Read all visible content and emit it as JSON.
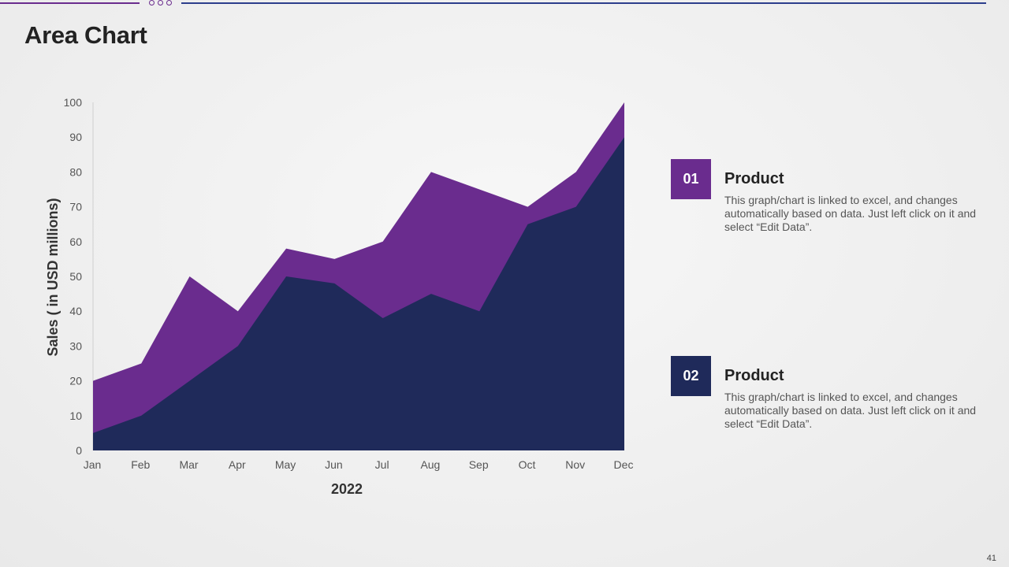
{
  "slide": {
    "title": "Area Chart",
    "page_number": "41"
  },
  "colors": {
    "accent_purple": "#6a2c8e",
    "accent_navy": "#1f2a5a",
    "top_line_blue": "#2c3e8c"
  },
  "legend_cards": [
    {
      "number": "01",
      "heading": "Product",
      "description": "This graph/chart is linked to excel, and changes automatically based on data. Just left click on it and select “Edit Data”.",
      "color": "#6a2c8e"
    },
    {
      "number": "02",
      "heading": "Product",
      "description": "This graph/chart is linked to excel, and changes automatically based on data. Just left click on it and select “Edit Data”.",
      "color": "#1f2a5a"
    }
  ],
  "chart_data": {
    "type": "area",
    "title": "",
    "xlabel": "2022",
    "ylabel": "Sales ( in USD millions)",
    "categories": [
      "Jan",
      "Feb",
      "Mar",
      "Apr",
      "May",
      "Jun",
      "Jul",
      "Aug",
      "Sep",
      "Oct",
      "Nov",
      "Dec"
    ],
    "ylim": [
      0,
      100
    ],
    "yticks": [
      0,
      10,
      20,
      30,
      40,
      50,
      60,
      70,
      80,
      90,
      100
    ],
    "grid": false,
    "legend": "none",
    "series": [
      {
        "values": [
          20,
          25,
          50,
          40,
          58,
          55,
          60,
          80,
          75,
          70,
          80,
          100
        ],
        "color": "#6a2c8e"
      },
      {
        "values": [
          5,
          10,
          20,
          30,
          50,
          48,
          38,
          45,
          40,
          65,
          70,
          90
        ],
        "color": "#1f2a5a"
      }
    ]
  }
}
